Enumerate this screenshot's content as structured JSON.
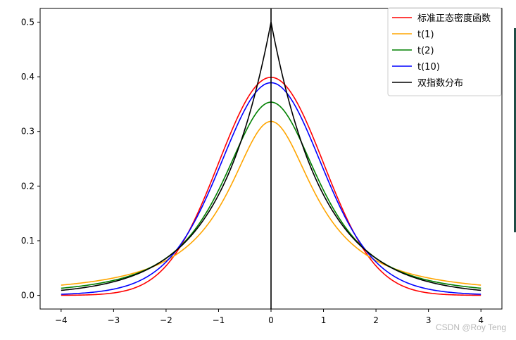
{
  "chart_data": {
    "type": "line",
    "xlim": [
      -4.4,
      4.4
    ],
    "ylim": [
      -0.025,
      0.525
    ],
    "xticks": [
      -4,
      -3,
      -2,
      -1,
      0,
      1,
      2,
      3,
      4
    ],
    "xtick_labels": [
      "−4",
      "−3",
      "−2",
      "−1",
      "0",
      "1",
      "2",
      "3",
      "4"
    ],
    "yticks": [
      0.0,
      0.1,
      0.2,
      0.3,
      0.4,
      0.5
    ],
    "ytick_labels": [
      "0.0",
      "0.1",
      "0.2",
      "0.3",
      "0.4",
      "0.5"
    ],
    "x_range": [
      -4,
      4
    ],
    "vertical_line_x": 0,
    "grid": false,
    "legend_position": "top-right",
    "series": [
      {
        "name": "标准正态密度函数",
        "color": "#ff0000",
        "dist": "normal",
        "peak": 0.399
      },
      {
        "name": "t(1)",
        "color": "#ffa500",
        "dist": "t",
        "df": 1,
        "peak": 0.318
      },
      {
        "name": "t(2)",
        "color": "#008000",
        "dist": "t",
        "df": 2,
        "peak": 0.354
      },
      {
        "name": "t(10)",
        "color": "#0000ff",
        "dist": "t",
        "df": 10,
        "peak": 0.389
      },
      {
        "name": "双指数分布",
        "color": "#000000",
        "dist": "laplace",
        "peak": 0.5
      }
    ]
  },
  "watermark": "CSDN @Roy Teng",
  "colors": {
    "background": "#ffffff",
    "axes": "#000000",
    "accent_edge": "#1f4d46"
  }
}
